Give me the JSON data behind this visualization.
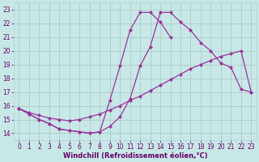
{
  "xlabel": "Windchill (Refroidissement éolien,°C)",
  "bg_color": "#c8e8e8",
  "grid_color": "#b0d0d0",
  "line_color": "#993399",
  "xlim": [
    -0.5,
    23.5
  ],
  "ylim": [
    13.5,
    23.5
  ],
  "xticks": [
    0,
    1,
    2,
    3,
    4,
    5,
    6,
    7,
    8,
    9,
    10,
    11,
    12,
    13,
    14,
    15,
    16,
    17,
    18,
    19,
    20,
    21,
    22,
    23
  ],
  "yticks": [
    14,
    15,
    16,
    17,
    18,
    19,
    20,
    21,
    22,
    23
  ],
  "line1_x": [
    0,
    1,
    2,
    3,
    4,
    5,
    6,
    7,
    8,
    9,
    10,
    11,
    12,
    13,
    14,
    15,
    16,
    17,
    18,
    19,
    20,
    21,
    22,
    23
  ],
  "line1_y": [
    15.8,
    15.4,
    15.0,
    14.7,
    14.3,
    14.2,
    14.1,
    14.0,
    14.1,
    14.5,
    15.2,
    16.5,
    18.9,
    20.3,
    22.8,
    22.8,
    22.1,
    21.5,
    20.6,
    20.0,
    19.1,
    18.8,
    17.2,
    17.0
  ],
  "line2_x": [
    0,
    1,
    2,
    3,
    4,
    5,
    6,
    7,
    8,
    9,
    10,
    11,
    12,
    13,
    14,
    15,
    16,
    17,
    18,
    19,
    20,
    21,
    22,
    23
  ],
  "line2_y": [
    15.8,
    15.5,
    15.3,
    15.1,
    15.0,
    14.9,
    15.0,
    15.2,
    15.4,
    15.7,
    16.0,
    16.4,
    16.7,
    17.1,
    17.5,
    17.9,
    18.3,
    18.7,
    19.0,
    19.3,
    19.6,
    19.8,
    20.0,
    17.0
  ],
  "line3_x": [
    0,
    1,
    2,
    3,
    4,
    5,
    6,
    7,
    8,
    9,
    10,
    11,
    12,
    13,
    14,
    15
  ],
  "line3_y": [
    15.8,
    15.4,
    15.0,
    14.7,
    14.3,
    14.2,
    14.1,
    14.0,
    14.1,
    16.4,
    18.9,
    21.5,
    22.8,
    22.8,
    22.1,
    21.0
  ],
  "font_color": "#660066",
  "tick_fontsize": 5.5,
  "label_fontsize": 6.0
}
